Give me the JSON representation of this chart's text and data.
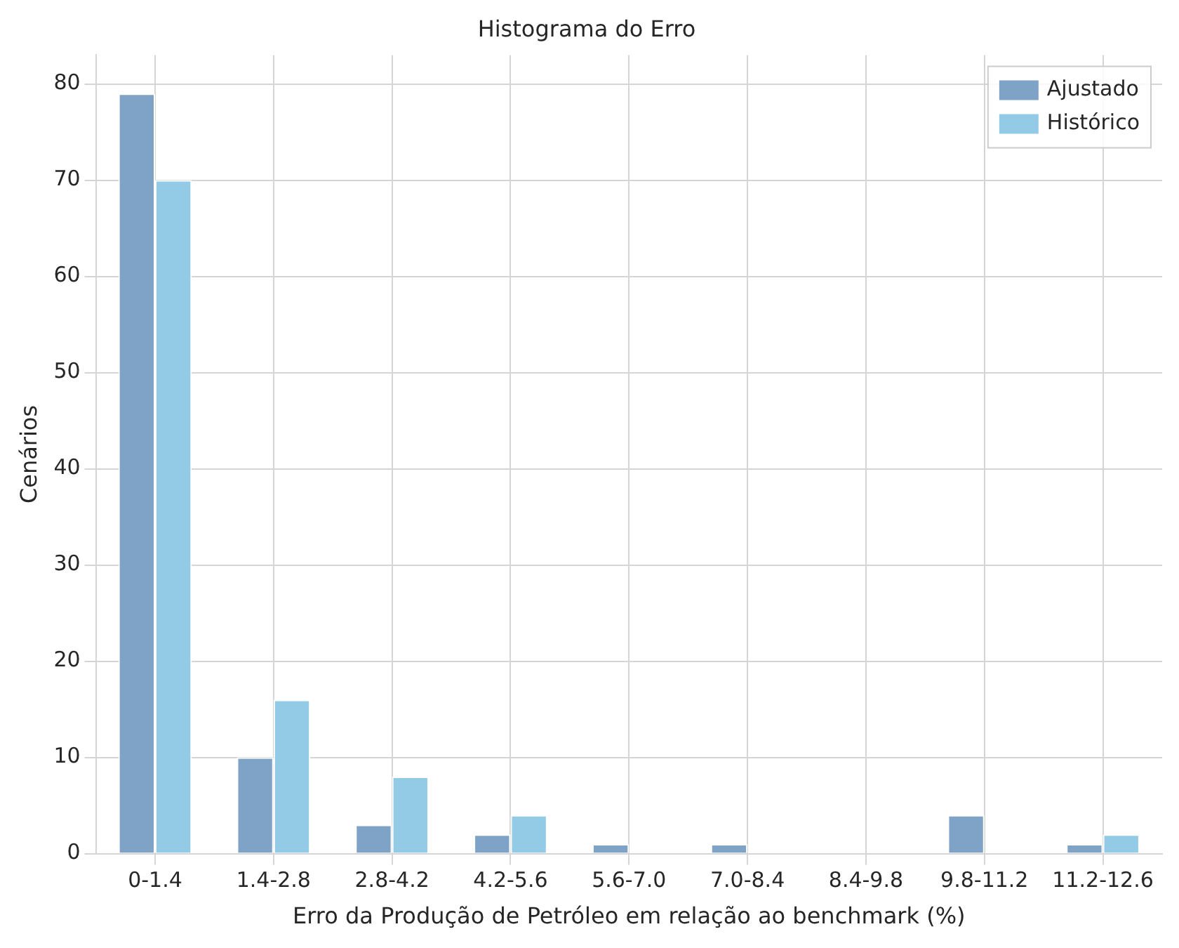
{
  "chart_data": {
    "type": "bar",
    "title": "Histograma do Erro",
    "xlabel": "Erro da Produção de Petróleo em relação ao benchmark (%)",
    "ylabel": "Cenários",
    "categories": [
      "0-1.4",
      "1.4-2.8",
      "2.8-4.2",
      "4.2-5.6",
      "5.6-7.0",
      "7.0-8.4",
      "8.4-9.8",
      "9.8-11.2",
      "11.2-12.6"
    ],
    "series": [
      {
        "name": "Ajustado",
        "color": "#7fa3c6",
        "values": [
          79,
          10,
          3,
          2,
          1,
          1,
          0,
          4,
          1
        ]
      },
      {
        "name": "Histórico",
        "color": "#93cbe6",
        "values": [
          70,
          16,
          8,
          4,
          0,
          0,
          0,
          0,
          2
        ]
      }
    ],
    "ylim": [
      0,
      83
    ],
    "yticks": [
      0,
      10,
      20,
      30,
      40,
      50,
      60,
      70,
      80
    ],
    "grid": true,
    "legend": "top right"
  }
}
